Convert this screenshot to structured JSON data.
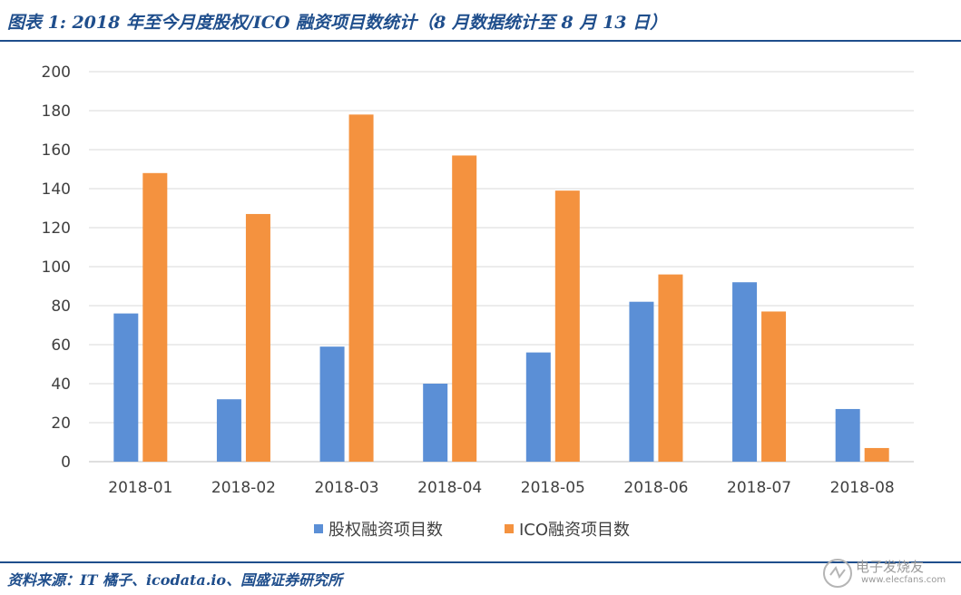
{
  "figure": {
    "title": "图表 1: 2018 年至今月度股权/ICO 融资项目数统计（8 月数据统计至 8 月 13 日）",
    "source": "资料来源：IT 橘子、icodata.io、国盛证券研究所"
  },
  "watermark": {
    "text": "电子发烧友",
    "url": "www.elecfans.com"
  },
  "colors": {
    "equity": "#5b8fd6",
    "ico": "#f4923f",
    "grid": "#d9d9d9",
    "axis": "#bfbfbf",
    "title": "#1f4e8c"
  },
  "chart_data": {
    "type": "bar",
    "categories": [
      "2018-01",
      "2018-02",
      "2018-03",
      "2018-04",
      "2018-05",
      "2018-06",
      "2018-07",
      "2018-08"
    ],
    "series": [
      {
        "name": "股权融资项目数",
        "values": [
          76,
          32,
          59,
          40,
          56,
          82,
          92,
          27
        ]
      },
      {
        "name": "ICO融资项目数",
        "values": [
          148,
          127,
          178,
          157,
          139,
          96,
          77,
          7
        ]
      }
    ],
    "ylim": [
      0,
      200
    ],
    "yticks": [
      0,
      20,
      40,
      60,
      80,
      100,
      120,
      140,
      160,
      180,
      200
    ],
    "grid": true,
    "legend_position": "bottom"
  }
}
